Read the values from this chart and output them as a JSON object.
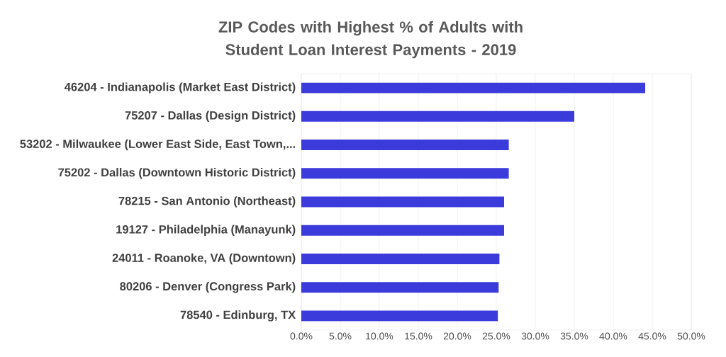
{
  "chart_data": {
    "type": "bar",
    "orientation": "horizontal",
    "title": "ZIP Codes with Highest % of Adults with Student Loan Interest Payments - 2019",
    "categories": [
      "46204 - Indianapolis (Market East District)",
      "75207 - Dallas (Design District)",
      "53202 - Milwaukee (Lower East Side, East Town,...",
      "75202 - Dallas (Downtown Historic District)",
      "78215 - San Antonio (Northeast)",
      "19127 - Philadelphia (Manayunk)",
      "24011 - Roanoke, VA (Downtown)",
      "80206 - Denver (Congress Park)",
      "78540 - Edinburg, TX"
    ],
    "values": [
      44.1,
      35.0,
      26.6,
      26.6,
      26.0,
      26.0,
      25.4,
      25.3,
      25.2
    ],
    "color": "#3b3bdc",
    "xlim": [
      0,
      50
    ],
    "xticks": [
      {
        "value": 0,
        "label": "0.0%"
      },
      {
        "value": 5,
        "label": "5.0%"
      },
      {
        "value": 10,
        "label": "10.0%"
      },
      {
        "value": 15,
        "label": "15.0%"
      },
      {
        "value": 20,
        "label": "20.0%"
      },
      {
        "value": 25,
        "label": "25.0%"
      },
      {
        "value": 30,
        "label": "30.0%"
      },
      {
        "value": 35,
        "label": "35.0%"
      },
      {
        "value": 40,
        "label": "40.0%"
      },
      {
        "value": 45,
        "label": "45.0%"
      },
      {
        "value": 50,
        "label": "50.0%"
      }
    ],
    "grid": "x"
  }
}
